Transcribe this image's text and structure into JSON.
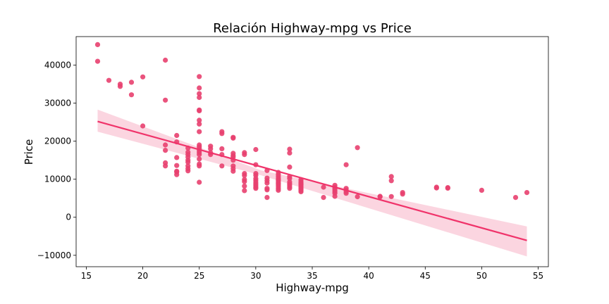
{
  "chart_data": {
    "type": "scatter",
    "title": "Relación Highway-mpg vs Price",
    "xlabel": "Highway-mpg",
    "ylabel": "Price",
    "xlim": [
      14.1,
      55.9
    ],
    "ylim": [
      -13000,
      47500
    ],
    "xticks": [
      15,
      20,
      25,
      30,
      35,
      40,
      45,
      50,
      55
    ],
    "yticks": [
      -10000,
      0,
      10000,
      20000,
      30000,
      40000
    ],
    "grid": false,
    "colors": {
      "point": "#e8406f",
      "line": "#f0336a",
      "band": "#f7b3c6"
    },
    "series": [
      {
        "points": [
          [
            16,
            45400
          ],
          [
            16,
            41000
          ],
          [
            17,
            36000
          ],
          [
            18,
            34400
          ],
          [
            18,
            35000
          ],
          [
            19,
            35500
          ],
          [
            19,
            32200
          ],
          [
            20,
            36900
          ],
          [
            20,
            24000
          ],
          [
            22,
            41300
          ],
          [
            22,
            30800
          ],
          [
            22,
            19000
          ],
          [
            22,
            17600
          ],
          [
            22,
            14300
          ],
          [
            22,
            13500
          ],
          [
            23,
            21500
          ],
          [
            23,
            19800
          ],
          [
            23,
            15700
          ],
          [
            23,
            13600
          ],
          [
            23,
            12100
          ],
          [
            23,
            11900
          ],
          [
            23,
            11200
          ],
          [
            24,
            18200
          ],
          [
            24,
            17100
          ],
          [
            24,
            16500
          ],
          [
            24,
            15800
          ],
          [
            24,
            15000
          ],
          [
            24,
            14500
          ],
          [
            24,
            13500
          ],
          [
            24,
            12800
          ],
          [
            24,
            12200
          ],
          [
            25,
            37000
          ],
          [
            25,
            34000
          ],
          [
            25,
            32500
          ],
          [
            25,
            31500
          ],
          [
            25,
            28200
          ],
          [
            25,
            28000
          ],
          [
            25,
            25500
          ],
          [
            25,
            24500
          ],
          [
            25,
            22500
          ],
          [
            25,
            19000
          ],
          [
            25,
            18500
          ],
          [
            25,
            18000
          ],
          [
            25,
            17500
          ],
          [
            25,
            17000
          ],
          [
            25,
            16500
          ],
          [
            25,
            15300
          ],
          [
            25,
            14000
          ],
          [
            25,
            13500
          ],
          [
            25,
            9200
          ],
          [
            26,
            18700
          ],
          [
            26,
            18000
          ],
          [
            26,
            17000
          ],
          [
            26,
            16500
          ],
          [
            27,
            22500
          ],
          [
            27,
            22000
          ],
          [
            27,
            18000
          ],
          [
            27,
            16500
          ],
          [
            27,
            13500
          ],
          [
            28,
            21000
          ],
          [
            28,
            20800
          ],
          [
            28,
            16800
          ],
          [
            28,
            16200
          ],
          [
            28,
            15800
          ],
          [
            28,
            15000
          ],
          [
            28,
            13500
          ],
          [
            28,
            12800
          ],
          [
            28,
            12100
          ],
          [
            29,
            17000
          ],
          [
            29,
            16500
          ],
          [
            29,
            11500
          ],
          [
            29,
            11000
          ],
          [
            29,
            9900
          ],
          [
            29,
            9400
          ],
          [
            29,
            8200
          ],
          [
            29,
            7000
          ],
          [
            30,
            17800
          ],
          [
            30,
            13800
          ],
          [
            30,
            11500
          ],
          [
            30,
            11000
          ],
          [
            30,
            10200
          ],
          [
            30,
            9700
          ],
          [
            30,
            9200
          ],
          [
            30,
            8700
          ],
          [
            30,
            8300
          ],
          [
            30,
            7900
          ],
          [
            30,
            7600
          ],
          [
            31,
            12300
          ],
          [
            31,
            10300
          ],
          [
            31,
            9600
          ],
          [
            31,
            9000
          ],
          [
            31,
            7600
          ],
          [
            31,
            7200
          ],
          [
            31,
            5200
          ],
          [
            32,
            11800
          ],
          [
            32,
            11200
          ],
          [
            32,
            10700
          ],
          [
            32,
            10200
          ],
          [
            32,
            9800
          ],
          [
            32,
            9500
          ],
          [
            32,
            9100
          ],
          [
            32,
            8800
          ],
          [
            32,
            8400
          ],
          [
            32,
            8000
          ],
          [
            32,
            7500
          ],
          [
            32,
            7100
          ],
          [
            33,
            17900
          ],
          [
            33,
            16900
          ],
          [
            33,
            13200
          ],
          [
            33,
            10700
          ],
          [
            33,
            10200
          ],
          [
            33,
            9300
          ],
          [
            33,
            8800
          ],
          [
            33,
            8400
          ],
          [
            33,
            8000
          ],
          [
            33,
            7600
          ],
          [
            34,
            9900
          ],
          [
            34,
            9500
          ],
          [
            34,
            9100
          ],
          [
            34,
            8800
          ],
          [
            34,
            8500
          ],
          [
            34,
            8200
          ],
          [
            34,
            7900
          ],
          [
            34,
            7600
          ],
          [
            34,
            7300
          ],
          [
            34,
            7000
          ],
          [
            34,
            6700
          ],
          [
            36,
            7900
          ],
          [
            36,
            5200
          ],
          [
            37,
            8400
          ],
          [
            37,
            7900
          ],
          [
            37,
            7500
          ],
          [
            37,
            7100
          ],
          [
            37,
            6700
          ],
          [
            37,
            6300
          ],
          [
            37,
            5500
          ],
          [
            38,
            13800
          ],
          [
            38,
            7600
          ],
          [
            38,
            7100
          ],
          [
            38,
            6700
          ],
          [
            38,
            6300
          ],
          [
            39,
            18300
          ],
          [
            39,
            5400
          ],
          [
            41,
            5500
          ],
          [
            41,
            5350
          ],
          [
            42,
            10700
          ],
          [
            42,
            9600
          ],
          [
            42,
            5450
          ],
          [
            43,
            6500
          ],
          [
            43,
            6100
          ],
          [
            46,
            7900
          ],
          [
            46,
            7700
          ],
          [
            47,
            7800
          ],
          [
            47,
            7650
          ],
          [
            50,
            7100
          ],
          [
            53,
            5200
          ],
          [
            54,
            6500
          ]
        ]
      }
    ],
    "regression": {
      "x": [
        16,
        54
      ],
      "y": [
        25200,
        -6100
      ],
      "ci_lower": [
        22500,
        -10300
      ],
      "ci_upper": [
        28300,
        -2400
      ],
      "ci_mid": {
        "x": 30.5,
        "lower": 11000,
        "upper": 12300
      }
    }
  }
}
